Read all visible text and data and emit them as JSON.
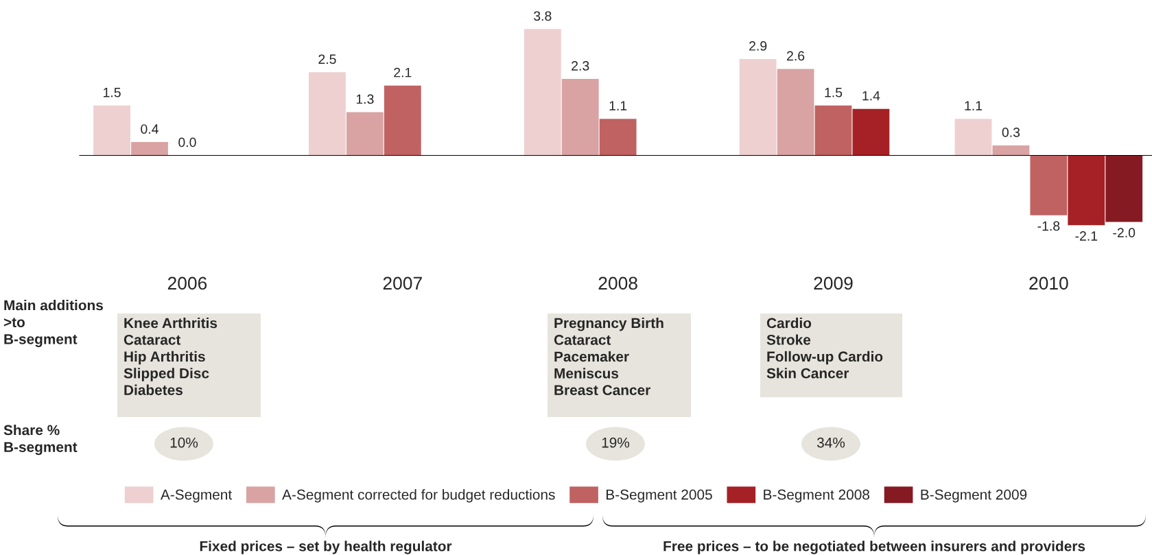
{
  "chart_data": {
    "type": "bar",
    "categories": [
      "2006",
      "2007",
      "2008",
      "2009",
      "2010"
    ],
    "series": [
      {
        "name": "A-Segment",
        "color": "#eed0d0",
        "values": [
          1.5,
          2.5,
          3.8,
          2.9,
          1.1
        ],
        "value_labels": [
          "1.5",
          "2.5",
          "3.8",
          "2.9",
          "1.1"
        ]
      },
      {
        "name": "A-Segment corrected for budget reductions",
        "color": "#d9a3a3",
        "values": [
          0.4,
          1.3,
          2.3,
          2.6,
          0.3
        ],
        "value_labels": [
          "0.4",
          "1.3",
          "2.3",
          "2.6",
          "0.3"
        ]
      },
      {
        "name": "B-Segment 2005",
        "color": "#c06262",
        "values": [
          0.0,
          2.1,
          1.1,
          1.5,
          -1.8
        ],
        "value_labels": [
          "0.0",
          "2.1",
          "1.1",
          "1.5",
          "-1.8"
        ]
      },
      {
        "name": "B-Segment 2008",
        "color": "#a52125",
        "values": [
          null,
          null,
          null,
          1.4,
          -2.1
        ],
        "value_labels": [
          null,
          null,
          null,
          "1.4",
          "-2.1"
        ]
      },
      {
        "name": "B-Segment 2009",
        "color": "#861a22",
        "values": [
          null,
          null,
          null,
          null,
          -2.0
        ],
        "value_labels": [
          null,
          null,
          null,
          null,
          "-2.0"
        ]
      }
    ],
    "legend": "bottom",
    "tick_labels": "x",
    "annotations": [
      "Main additions\n>to\nB-segment",
      "Knee Arthritis\nCataract\nHip Arthritis\nSlipped Disc\nDiabetes",
      "Pregnancy Birth\nCataract\nPacemaker\nMeniscus\nBreast Cancer",
      "Cardio\nStroke\nFollow-up Cardio\nSkin Cancer",
      "Share %\nB-segment",
      "10%",
      "19%",
      "34%",
      "Fixed prices – set by health regulator",
      "Free prices – to be negotiated between insurers and providers"
    ]
  }
}
